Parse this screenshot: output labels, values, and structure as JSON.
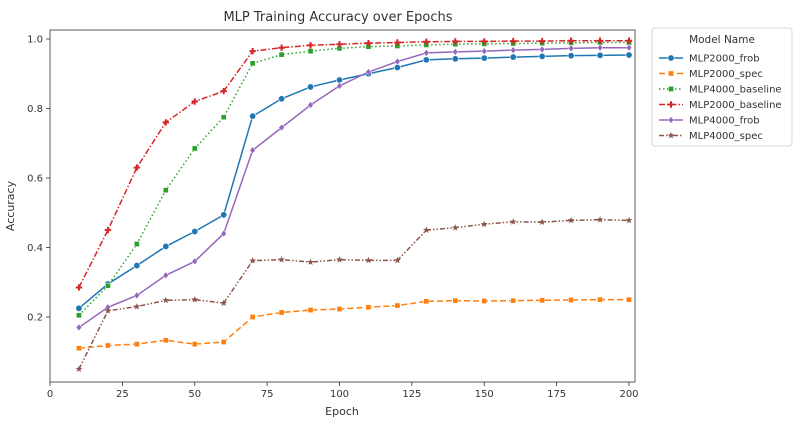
{
  "chart_data": {
    "type": "line",
    "title": "MLP Training Accuracy over Epochs",
    "xlabel": "Epoch",
    "ylabel": "Accuracy",
    "xlim": [
      0,
      200
    ],
    "ylim": [
      0.0,
      1.0
    ],
    "xticks": [
      0,
      25,
      50,
      75,
      100,
      125,
      150,
      175,
      200
    ],
    "yticks": [
      0.2,
      0.4,
      0.6,
      0.8,
      1.0
    ],
    "grid": false,
    "legend_title": "Model Name",
    "legend_position": "outside-right",
    "x": [
      10,
      20,
      30,
      40,
      50,
      60,
      70,
      80,
      90,
      100,
      110,
      120,
      130,
      140,
      150,
      160,
      170,
      180,
      190,
      200
    ],
    "series": [
      {
        "name": "MLP2000_frob",
        "color": "#1f77b4",
        "marker": "circle",
        "dash": "solid",
        "values": [
          0.225,
          0.295,
          0.348,
          0.403,
          0.446,
          0.494,
          0.778,
          0.828,
          0.862,
          0.882,
          0.9,
          0.918,
          0.94,
          0.943,
          0.945,
          0.948,
          0.95,
          0.952,
          0.953,
          0.954
        ]
      },
      {
        "name": "MLP2000_spec",
        "color": "#ff7f0e",
        "marker": "square",
        "dash": "dashed",
        "values": [
          0.11,
          0.118,
          0.122,
          0.133,
          0.122,
          0.128,
          0.2,
          0.213,
          0.22,
          0.223,
          0.228,
          0.233,
          0.245,
          0.247,
          0.246,
          0.247,
          0.248,
          0.249,
          0.25,
          0.25
        ]
      },
      {
        "name": "MLP4000_baseline",
        "color": "#2ca02c",
        "marker": "square",
        "dash": "dotted",
        "values": [
          0.205,
          0.29,
          0.41,
          0.565,
          0.685,
          0.775,
          0.93,
          0.955,
          0.965,
          0.973,
          0.978,
          0.98,
          0.983,
          0.985,
          0.986,
          0.987,
          0.988,
          0.989,
          0.99,
          0.99
        ]
      },
      {
        "name": "MLP2000_baseline",
        "color": "#d62728",
        "marker": "plus",
        "dash": "dashdot",
        "values": [
          0.285,
          0.45,
          0.63,
          0.76,
          0.82,
          0.85,
          0.965,
          0.975,
          0.982,
          0.985,
          0.988,
          0.99,
          0.992,
          0.993,
          0.993,
          0.994,
          0.994,
          0.995,
          0.995,
          0.995
        ]
      },
      {
        "name": "MLP4000_frob",
        "color": "#9467bd",
        "marker": "diamond",
        "dash": "solid",
        "values": [
          0.17,
          0.228,
          0.262,
          0.32,
          0.36,
          0.44,
          0.68,
          0.745,
          0.81,
          0.865,
          0.905,
          0.935,
          0.96,
          0.963,
          0.965,
          0.968,
          0.97,
          0.973,
          0.975,
          0.975
        ]
      },
      {
        "name": "MLP4000_spec",
        "color": "#8c564b",
        "marker": "star",
        "dash": "dashdotdot",
        "values": [
          0.05,
          0.218,
          0.23,
          0.248,
          0.25,
          0.24,
          0.362,
          0.365,
          0.358,
          0.365,
          0.363,
          0.363,
          0.45,
          0.457,
          0.467,
          0.474,
          0.473,
          0.478,
          0.48,
          0.478
        ]
      }
    ]
  }
}
